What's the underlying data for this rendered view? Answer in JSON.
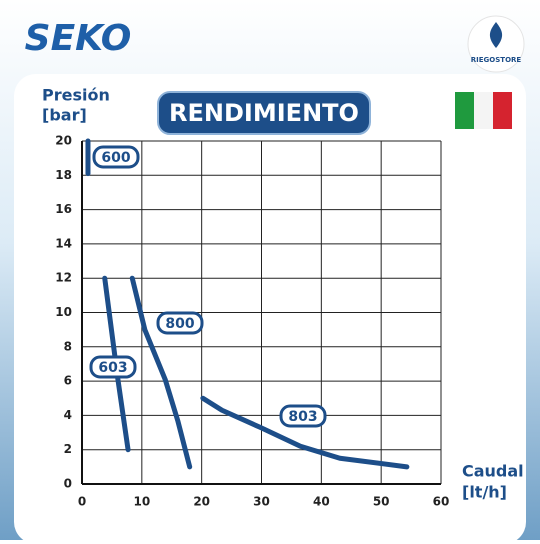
{
  "logos": {
    "brand": "SEKO",
    "store": "RIEGOSTORE"
  },
  "chart_data": {
    "type": "line",
    "title": "RENDIMIENTO",
    "ylabel": [
      "Presión",
      "[bar]"
    ],
    "xlabel": [
      "Caudal",
      "[lt/h]"
    ],
    "xlim": [
      0,
      60
    ],
    "xticks": [
      0,
      10,
      20,
      30,
      40,
      50,
      60
    ],
    "ylim": [
      0,
      20
    ],
    "yticks": [
      0,
      2,
      4,
      6,
      8,
      10,
      12,
      14,
      16,
      18,
      20
    ],
    "grid": true,
    "series": [
      {
        "name": "600",
        "color": "#1d4e89",
        "x": [
          1,
          1
        ],
        "values": [
          18.1,
          20
        ]
      },
      {
        "name": "603",
        "color": "#1d4e89",
        "x": [
          3.8,
          6,
          7.7
        ],
        "values": [
          12,
          6.1,
          2
        ]
      },
      {
        "name": "800",
        "color": "#1d4e89",
        "x": [
          8.4,
          10.5,
          13.9,
          16,
          18
        ],
        "values": [
          12,
          9,
          6.1,
          3.7,
          1
        ]
      },
      {
        "name": "803",
        "color": "#1d4e89",
        "x": [
          20.2,
          23.4,
          29.8,
          36.5,
          43.1,
          54.3
        ],
        "values": [
          5,
          4.3,
          3.3,
          2.2,
          1.5,
          1
        ]
      }
    ]
  }
}
